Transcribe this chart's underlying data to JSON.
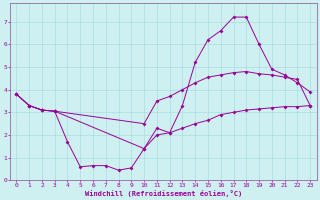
{
  "xlabel": "Windchill (Refroidissement éolien,°C)",
  "bg_color": "#cff0f0",
  "line_color": "#990099",
  "grid_color": "#aadddd",
  "spine_color": "#9966aa",
  "xlim": [
    -0.5,
    23.5
  ],
  "ylim": [
    0,
    7.8
  ],
  "xticks": [
    0,
    1,
    2,
    3,
    4,
    5,
    6,
    7,
    8,
    9,
    10,
    11,
    12,
    13,
    14,
    15,
    16,
    17,
    18,
    19,
    20,
    21,
    22,
    23
  ],
  "yticks": [
    0,
    1,
    2,
    3,
    4,
    5,
    6,
    7
  ],
  "line1_x": [
    0,
    1,
    2,
    3,
    4,
    5,
    6,
    7,
    8,
    9,
    10,
    11,
    12,
    13,
    14,
    15,
    16,
    17,
    18,
    19,
    20,
    21,
    22,
    23
  ],
  "line1_y": [
    3.8,
    3.3,
    3.1,
    3.05,
    1.7,
    0.6,
    0.65,
    0.65,
    0.45,
    0.55,
    1.4,
    2.3,
    2.1,
    3.3,
    5.2,
    6.2,
    6.6,
    7.2,
    7.2,
    6.0,
    4.9,
    4.65,
    4.3,
    3.9
  ],
  "line2_x": [
    0,
    1,
    2,
    3,
    10,
    11,
    12,
    13,
    14,
    15,
    16,
    17,
    18,
    19,
    20,
    21,
    22,
    23
  ],
  "line2_y": [
    3.8,
    3.3,
    3.1,
    3.05,
    2.5,
    3.5,
    3.7,
    4.0,
    4.3,
    4.55,
    4.65,
    4.75,
    4.8,
    4.7,
    4.65,
    4.55,
    4.45,
    3.3
  ],
  "line3_x": [
    0,
    1,
    2,
    3,
    10,
    11,
    12,
    13,
    14,
    15,
    16,
    17,
    18,
    19,
    20,
    21,
    22,
    23
  ],
  "line3_y": [
    3.8,
    3.3,
    3.1,
    3.05,
    1.4,
    2.0,
    2.1,
    2.3,
    2.5,
    2.65,
    2.9,
    3.0,
    3.1,
    3.15,
    3.2,
    3.25,
    3.25,
    3.3
  ]
}
